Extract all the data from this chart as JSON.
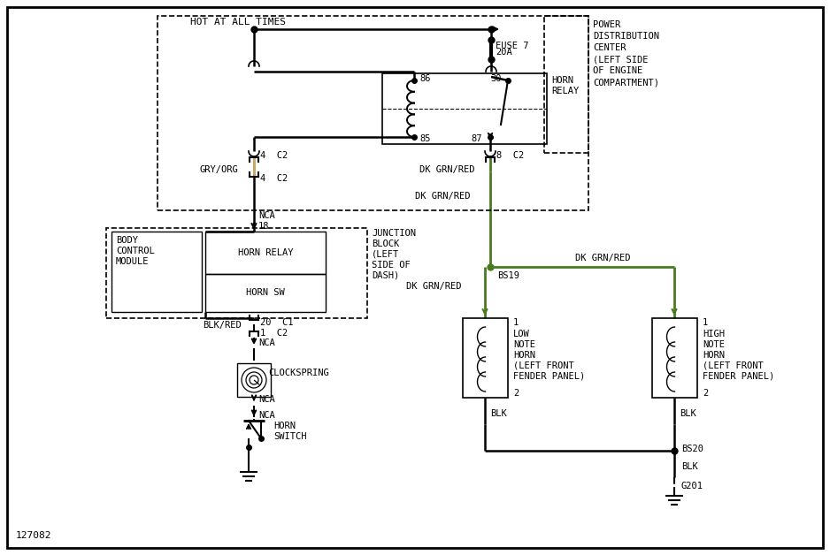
{
  "bg": "#ffffff",
  "lc": "#000000",
  "gc": "#4a7a20",
  "tc": "#c8a864",
  "diagram_num": "127082",
  "hot_label": "HOT AT ALL TIMES",
  "pdc_label": [
    "POWER",
    "DISTRIBUTION",
    "CENTER",
    "(LEFT SIDE",
    "OF ENGINE",
    "COMPARTMENT)"
  ],
  "relay_label": [
    "HORN",
    "RELAY"
  ],
  "jb_label": [
    "JUNCTION",
    "BLOCK",
    "(LEFT",
    "SIDE OF",
    "DASH)"
  ],
  "bcm_label": [
    "BODY",
    "CONTROL",
    "MODULE"
  ],
  "cs_label": "CLOCKSPRING",
  "hs_label": [
    "HORN",
    "SWITCH"
  ],
  "low_horn": [
    "LOW",
    "NOTE",
    "HORN",
    "(LEFT FRONT",
    "FENDER PANEL)"
  ],
  "high_horn": [
    "HIGH",
    "NOTE",
    "HORN",
    "(LEFT FRONT",
    "FENDER PANEL)"
  ]
}
